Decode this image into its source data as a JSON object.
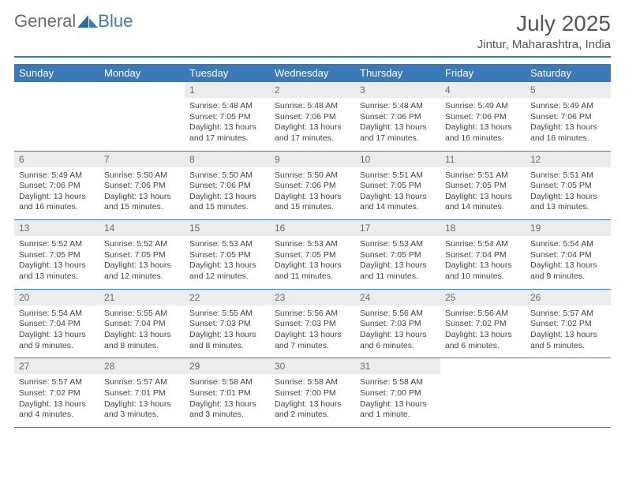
{
  "brand": {
    "general": "General",
    "blue": "Blue"
  },
  "header": {
    "month_title": "July 2025",
    "location": "Jintur, Maharashtra, India"
  },
  "colors": {
    "accent": "#3a7ab8",
    "head_bg": "#3a7ab8",
    "daynum_bg": "#ececec",
    "text": "#444444"
  },
  "day_names": [
    "Sunday",
    "Monday",
    "Tuesday",
    "Wednesday",
    "Thursday",
    "Friday",
    "Saturday"
  ],
  "weeks": [
    [
      null,
      null,
      {
        "n": "1",
        "sr": "5:48 AM",
        "ss": "7:05 PM",
        "dl": "13 hours and 17 minutes."
      },
      {
        "n": "2",
        "sr": "5:48 AM",
        "ss": "7:06 PM",
        "dl": "13 hours and 17 minutes."
      },
      {
        "n": "3",
        "sr": "5:48 AM",
        "ss": "7:06 PM",
        "dl": "13 hours and 17 minutes."
      },
      {
        "n": "4",
        "sr": "5:49 AM",
        "ss": "7:06 PM",
        "dl": "13 hours and 16 minutes."
      },
      {
        "n": "5",
        "sr": "5:49 AM",
        "ss": "7:06 PM",
        "dl": "13 hours and 16 minutes."
      }
    ],
    [
      {
        "n": "6",
        "sr": "5:49 AM",
        "ss": "7:06 PM",
        "dl": "13 hours and 16 minutes."
      },
      {
        "n": "7",
        "sr": "5:50 AM",
        "ss": "7:06 PM",
        "dl": "13 hours and 15 minutes."
      },
      {
        "n": "8",
        "sr": "5:50 AM",
        "ss": "7:06 PM",
        "dl": "13 hours and 15 minutes."
      },
      {
        "n": "9",
        "sr": "5:50 AM",
        "ss": "7:06 PM",
        "dl": "13 hours and 15 minutes."
      },
      {
        "n": "10",
        "sr": "5:51 AM",
        "ss": "7:05 PM",
        "dl": "13 hours and 14 minutes."
      },
      {
        "n": "11",
        "sr": "5:51 AM",
        "ss": "7:05 PM",
        "dl": "13 hours and 14 minutes."
      },
      {
        "n": "12",
        "sr": "5:51 AM",
        "ss": "7:05 PM",
        "dl": "13 hours and 13 minutes."
      }
    ],
    [
      {
        "n": "13",
        "sr": "5:52 AM",
        "ss": "7:05 PM",
        "dl": "13 hours and 13 minutes."
      },
      {
        "n": "14",
        "sr": "5:52 AM",
        "ss": "7:05 PM",
        "dl": "13 hours and 12 minutes."
      },
      {
        "n": "15",
        "sr": "5:53 AM",
        "ss": "7:05 PM",
        "dl": "13 hours and 12 minutes."
      },
      {
        "n": "16",
        "sr": "5:53 AM",
        "ss": "7:05 PM",
        "dl": "13 hours and 11 minutes."
      },
      {
        "n": "17",
        "sr": "5:53 AM",
        "ss": "7:05 PM",
        "dl": "13 hours and 11 minutes."
      },
      {
        "n": "18",
        "sr": "5:54 AM",
        "ss": "7:04 PM",
        "dl": "13 hours and 10 minutes."
      },
      {
        "n": "19",
        "sr": "5:54 AM",
        "ss": "7:04 PM",
        "dl": "13 hours and 9 minutes."
      }
    ],
    [
      {
        "n": "20",
        "sr": "5:54 AM",
        "ss": "7:04 PM",
        "dl": "13 hours and 9 minutes."
      },
      {
        "n": "21",
        "sr": "5:55 AM",
        "ss": "7:04 PM",
        "dl": "13 hours and 8 minutes."
      },
      {
        "n": "22",
        "sr": "5:55 AM",
        "ss": "7:03 PM",
        "dl": "13 hours and 8 minutes."
      },
      {
        "n": "23",
        "sr": "5:56 AM",
        "ss": "7:03 PM",
        "dl": "13 hours and 7 minutes."
      },
      {
        "n": "24",
        "sr": "5:56 AM",
        "ss": "7:03 PM",
        "dl": "13 hours and 6 minutes."
      },
      {
        "n": "25",
        "sr": "5:56 AM",
        "ss": "7:02 PM",
        "dl": "13 hours and 6 minutes."
      },
      {
        "n": "26",
        "sr": "5:57 AM",
        "ss": "7:02 PM",
        "dl": "13 hours and 5 minutes."
      }
    ],
    [
      {
        "n": "27",
        "sr": "5:57 AM",
        "ss": "7:02 PM",
        "dl": "13 hours and 4 minutes."
      },
      {
        "n": "28",
        "sr": "5:57 AM",
        "ss": "7:01 PM",
        "dl": "13 hours and 3 minutes."
      },
      {
        "n": "29",
        "sr": "5:58 AM",
        "ss": "7:01 PM",
        "dl": "13 hours and 3 minutes."
      },
      {
        "n": "30",
        "sr": "5:58 AM",
        "ss": "7:00 PM",
        "dl": "13 hours and 2 minutes."
      },
      {
        "n": "31",
        "sr": "5:58 AM",
        "ss": "7:00 PM",
        "dl": "13 hours and 1 minute."
      },
      null,
      null
    ]
  ],
  "labels": {
    "sunrise": "Sunrise: ",
    "sunset": "Sunset: ",
    "daylight": "Daylight: "
  }
}
